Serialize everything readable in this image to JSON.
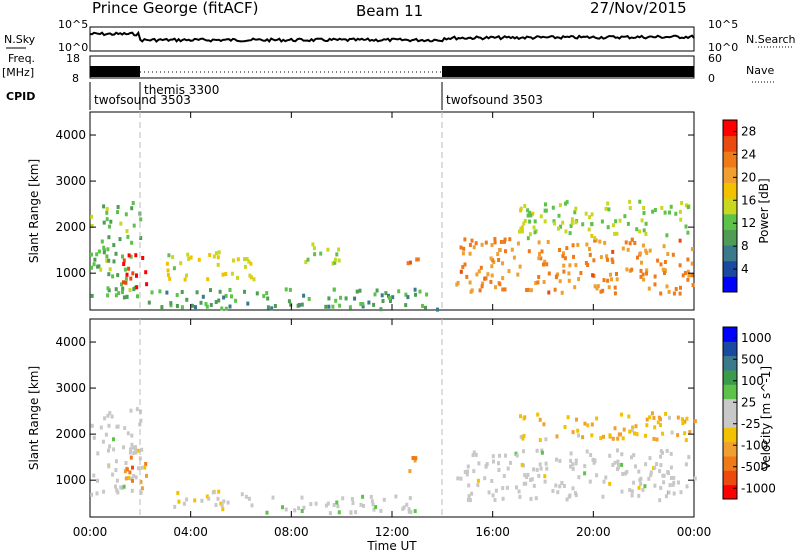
{
  "header": {
    "station": "Prince George (fitACF)",
    "beam": "Beam 11",
    "date": "27/Nov/2015"
  },
  "strip_labels": {
    "nsky": "N.Sky",
    "nsky_top": "10^5",
    "nsky_bottom": "10^0",
    "freq": "Freq.",
    "freq_unit": "[MHz]",
    "freq_top": "18",
    "freq_bottom": "8",
    "nsearch": "N.Search",
    "nsearch_top": "10^5",
    "nsearch_bottom": "10^0",
    "nave": "Nave",
    "nave_top": "60",
    "nave_bottom": "0",
    "cpid": "CPID"
  },
  "cpid_blocks": [
    {
      "label": "twofsound 3503",
      "start_hour": 0
    },
    {
      "label": "themis 3300",
      "start_hour": 2
    },
    {
      "label": "twofsound 3503",
      "start_hour": 14
    }
  ],
  "xaxis": {
    "label": "Time UT",
    "ticks": [
      "00:00",
      "04:00",
      "08:00",
      "12:00",
      "16:00",
      "20:00",
      "00:00"
    ]
  },
  "colors": {
    "scale_power": [
      "#0000ff",
      "#1a4aa0",
      "#3a7a8c",
      "#4f9c55",
      "#5cc24a",
      "#c8d820",
      "#f2c200",
      "#f0a030",
      "#ee7a1a",
      "#e84a10",
      "#ff0000"
    ],
    "scale_velocity": [
      "#ff0000",
      "#ee4a10",
      "#f07a1a",
      "#f0a030",
      "#f2c200",
      "#c8c8c8",
      "#c8c8c8",
      "#5cc24a",
      "#3a9c4a",
      "#3a7a8c",
      "#1a4aa0",
      "#0000ff"
    ]
  },
  "chart_data": [
    {
      "type": "heatmap",
      "title": "",
      "xlabel": "Time UT",
      "ylabel": "Slant Range [km]",
      "xlim": [
        0,
        24
      ],
      "ylim": [
        200,
        4500
      ],
      "yticks": [
        "1000",
        "2000",
        "3000",
        "4000"
      ],
      "colorbar": {
        "label": "Power [dB]",
        "ticks": [
          "4",
          "8",
          "12",
          "16",
          "20",
          "24",
          "28"
        ],
        "range": [
          0,
          30
        ]
      },
      "regions": [
        {
          "x": [
            0,
            2
          ],
          "y": [
            500,
            2600
          ],
          "value": 12
        },
        {
          "x": [
            1.2,
            2.2
          ],
          "y": [
            700,
            1600
          ],
          "value": 28
        },
        {
          "x": [
            2,
            14
          ],
          "y": [
            250,
            700
          ],
          "value": 10
        },
        {
          "x": [
            3,
            6.5
          ],
          "y": [
            900,
            1500
          ],
          "value": 16
        },
        {
          "x": [
            8.5,
            10
          ],
          "y": [
            1200,
            1700
          ],
          "value": 14
        },
        {
          "x": [
            12.5,
            13
          ],
          "y": [
            1200,
            1700
          ],
          "value": 26
        },
        {
          "x": [
            14.5,
            24
          ],
          "y": [
            600,
            1800
          ],
          "value": 22
        },
        {
          "x": [
            17,
            24
          ],
          "y": [
            1800,
            2600
          ],
          "value": 14
        }
      ]
    },
    {
      "type": "heatmap",
      "title": "",
      "xlabel": "Time UT",
      "ylabel": "Slant Range [km]",
      "xlim": [
        0,
        24
      ],
      "ylim": [
        200,
        4500
      ],
      "yticks": [
        "1000",
        "2000",
        "3000",
        "4000"
      ],
      "colorbar": {
        "label": "Velocity [m s^-1]",
        "ticks": [
          "1000",
          "500",
          "100",
          "25",
          "-25",
          "-100",
          "-500",
          "-1000"
        ],
        "range": [
          -1000,
          1000
        ]
      },
      "regions": [
        {
          "x": [
            0,
            2
          ],
          "y": [
            700,
            2600
          ],
          "value": 0
        },
        {
          "x": [
            1.2,
            2.2
          ],
          "y": [
            800,
            1600
          ],
          "value": -500
        },
        {
          "x": [
            3,
            6.5
          ],
          "y": [
            400,
            800
          ],
          "value": -100
        },
        {
          "x": [
            6.5,
            13
          ],
          "y": [
            300,
            700
          ],
          "value": 50
        },
        {
          "x": [
            12.5,
            13
          ],
          "y": [
            1200,
            1700
          ],
          "value": -500
        },
        {
          "x": [
            14.5,
            24
          ],
          "y": [
            600,
            1700
          ],
          "value": 0
        },
        {
          "x": [
            17,
            24
          ],
          "y": [
            1900,
            2500
          ],
          "value": -300
        }
      ]
    }
  ]
}
